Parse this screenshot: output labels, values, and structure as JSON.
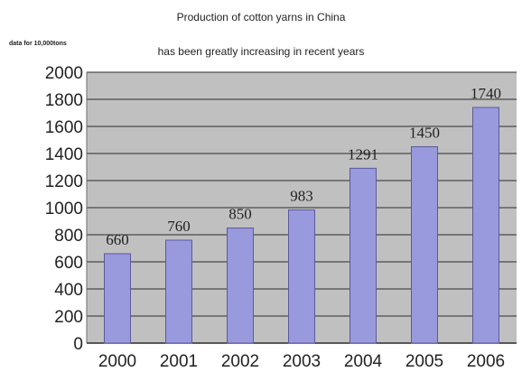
{
  "chart_data": {
    "type": "bar",
    "title": "Production of cotton yarns in China",
    "subtitle": "has been greatly increasing in recent years",
    "ylabel": "data for 10,000tons",
    "xlabel": "",
    "categories": [
      "2000",
      "2001",
      "2002",
      "2003",
      "2004",
      "2005",
      "2006"
    ],
    "values": [
      660,
      760,
      850,
      983,
      1291,
      1450,
      1740
    ],
    "data_labels": [
      "660",
      "760",
      "850",
      "983",
      "1291",
      "1450",
      "1740"
    ],
    "ylim": [
      0,
      2000
    ],
    "yticks": [
      0,
      200,
      400,
      600,
      800,
      1000,
      1200,
      1400,
      1600,
      1800,
      2000
    ],
    "grid": true,
    "legend": "none",
    "colors": {
      "plot_background": "#c0c0c0",
      "bar_fill": "#9999dd",
      "bar_stroke": "#5a5a9a",
      "gridline": "#2b2b2b"
    }
  }
}
